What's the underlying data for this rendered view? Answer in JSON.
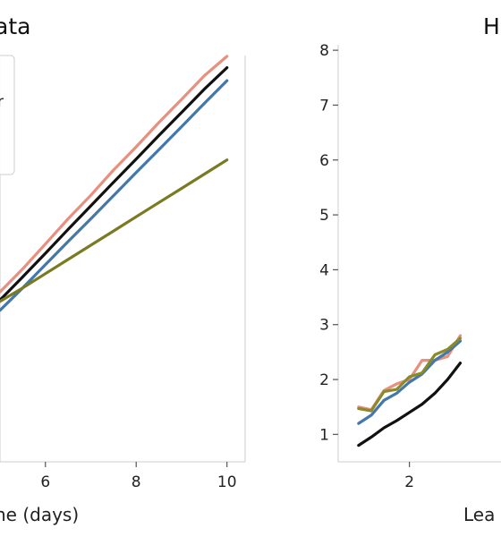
{
  "chart_data": [
    {
      "type": "line",
      "title_fragment": "ata",
      "xlabel_fragment": "ne (days)",
      "x_ticks": [
        6,
        8,
        10
      ],
      "xlim": [
        5.0,
        10.4
      ],
      "ylim": [
        0.0,
        10.0
      ],
      "grid": false,
      "legend": {
        "placement": "top-left",
        "visible_text": "r"
      },
      "x": [
        5.0,
        5.5,
        6.0,
        6.5,
        7.0,
        7.5,
        8.0,
        8.5,
        9.0,
        9.5,
        10.0
      ],
      "series": [
        {
          "color": "#e8907f",
          "values": [
            4.18,
            4.75,
            5.36,
            5.98,
            6.56,
            7.18,
            7.75,
            8.35,
            8.92,
            9.5,
            9.98
          ]
        },
        {
          "color": "#111111",
          "values": [
            3.98,
            4.55,
            5.13,
            5.72,
            6.3,
            6.88,
            7.45,
            8.03,
            8.6,
            9.17,
            9.7
          ]
        },
        {
          "color": "#4477aa",
          "values": [
            3.73,
            4.28,
            4.85,
            5.42,
            5.98,
            6.55,
            7.12,
            7.68,
            8.25,
            8.82,
            9.38
          ]
        },
        {
          "color": "#7a7a22",
          "values": [
            3.95,
            4.28,
            4.63,
            4.98,
            5.33,
            5.68,
            6.03,
            6.38,
            6.73,
            7.08,
            7.43
          ]
        }
      ]
    },
    {
      "type": "line",
      "title_fragment": "H",
      "xlabel_fragment": "Lea",
      "x_ticks": [
        2
      ],
      "y_ticks": [
        1,
        2,
        3,
        4,
        5,
        6,
        7,
        8
      ],
      "xlim": [
        0.6,
        3.8
      ],
      "ylim": [
        0.5,
        8.1
      ],
      "grid": false,
      "x": [
        1.0,
        1.25,
        1.5,
        1.75,
        2.0,
        2.25,
        2.5,
        2.75,
        3.0
      ],
      "series": [
        {
          "color": "#e8907f",
          "values": [
            1.5,
            1.45,
            1.8,
            1.92,
            2.0,
            2.35,
            2.35,
            2.42,
            2.8
          ]
        },
        {
          "color": "#4477aa",
          "values": [
            1.2,
            1.35,
            1.62,
            1.75,
            1.95,
            2.1,
            2.35,
            2.5,
            2.7
          ]
        },
        {
          "color": "#8a8a2a",
          "values": [
            1.47,
            1.43,
            1.78,
            1.82,
            2.05,
            2.12,
            2.45,
            2.55,
            2.75
          ]
        },
        {
          "color": "#111111",
          "values": [
            0.8,
            0.95,
            1.12,
            1.25,
            1.4,
            1.55,
            1.75,
            2.0,
            2.3
          ]
        }
      ]
    }
  ]
}
